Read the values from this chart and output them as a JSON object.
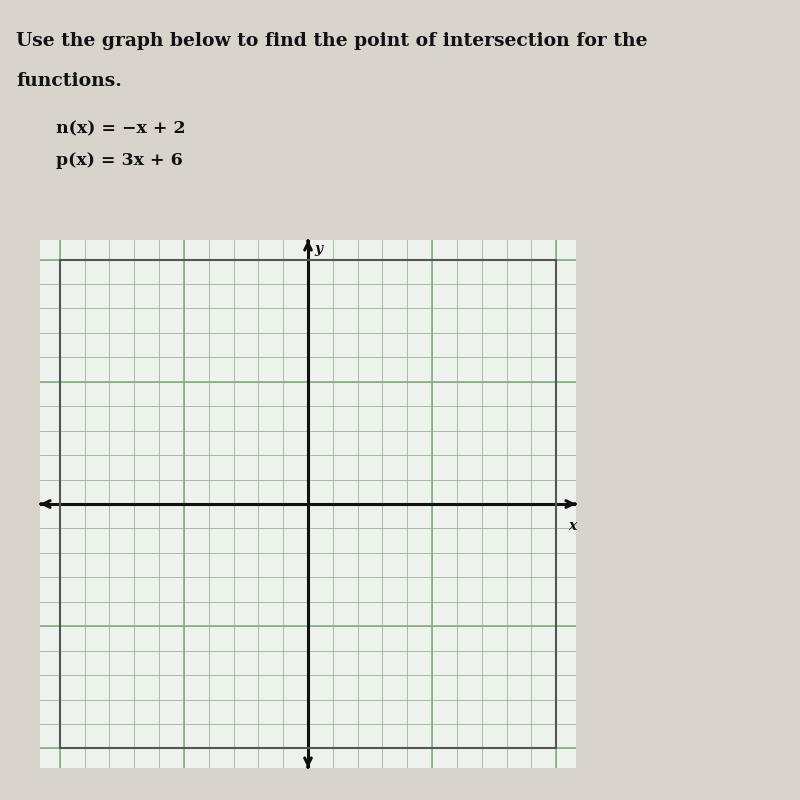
{
  "title_line1": "Use the graph below to find the point of intersection for the",
  "title_line2": "functions.",
  "func1_label": "n(x) = −x + 2",
  "func2_label": "p(x) = 3x + 6",
  "page_bg_color": "#d8d4cc",
  "grid_bg_color": "#eef2ec",
  "grid_color": "#8aaa88",
  "axis_color": "#111111",
  "border_color": "#555555",
  "text_color": "#111111",
  "xlim": [
    -10,
    10
  ],
  "ylim": [
    -10,
    10
  ],
  "fig_width": 8.0,
  "fig_height": 8.0,
  "title_fontsize": 13.5,
  "func_fontsize": 12.5
}
